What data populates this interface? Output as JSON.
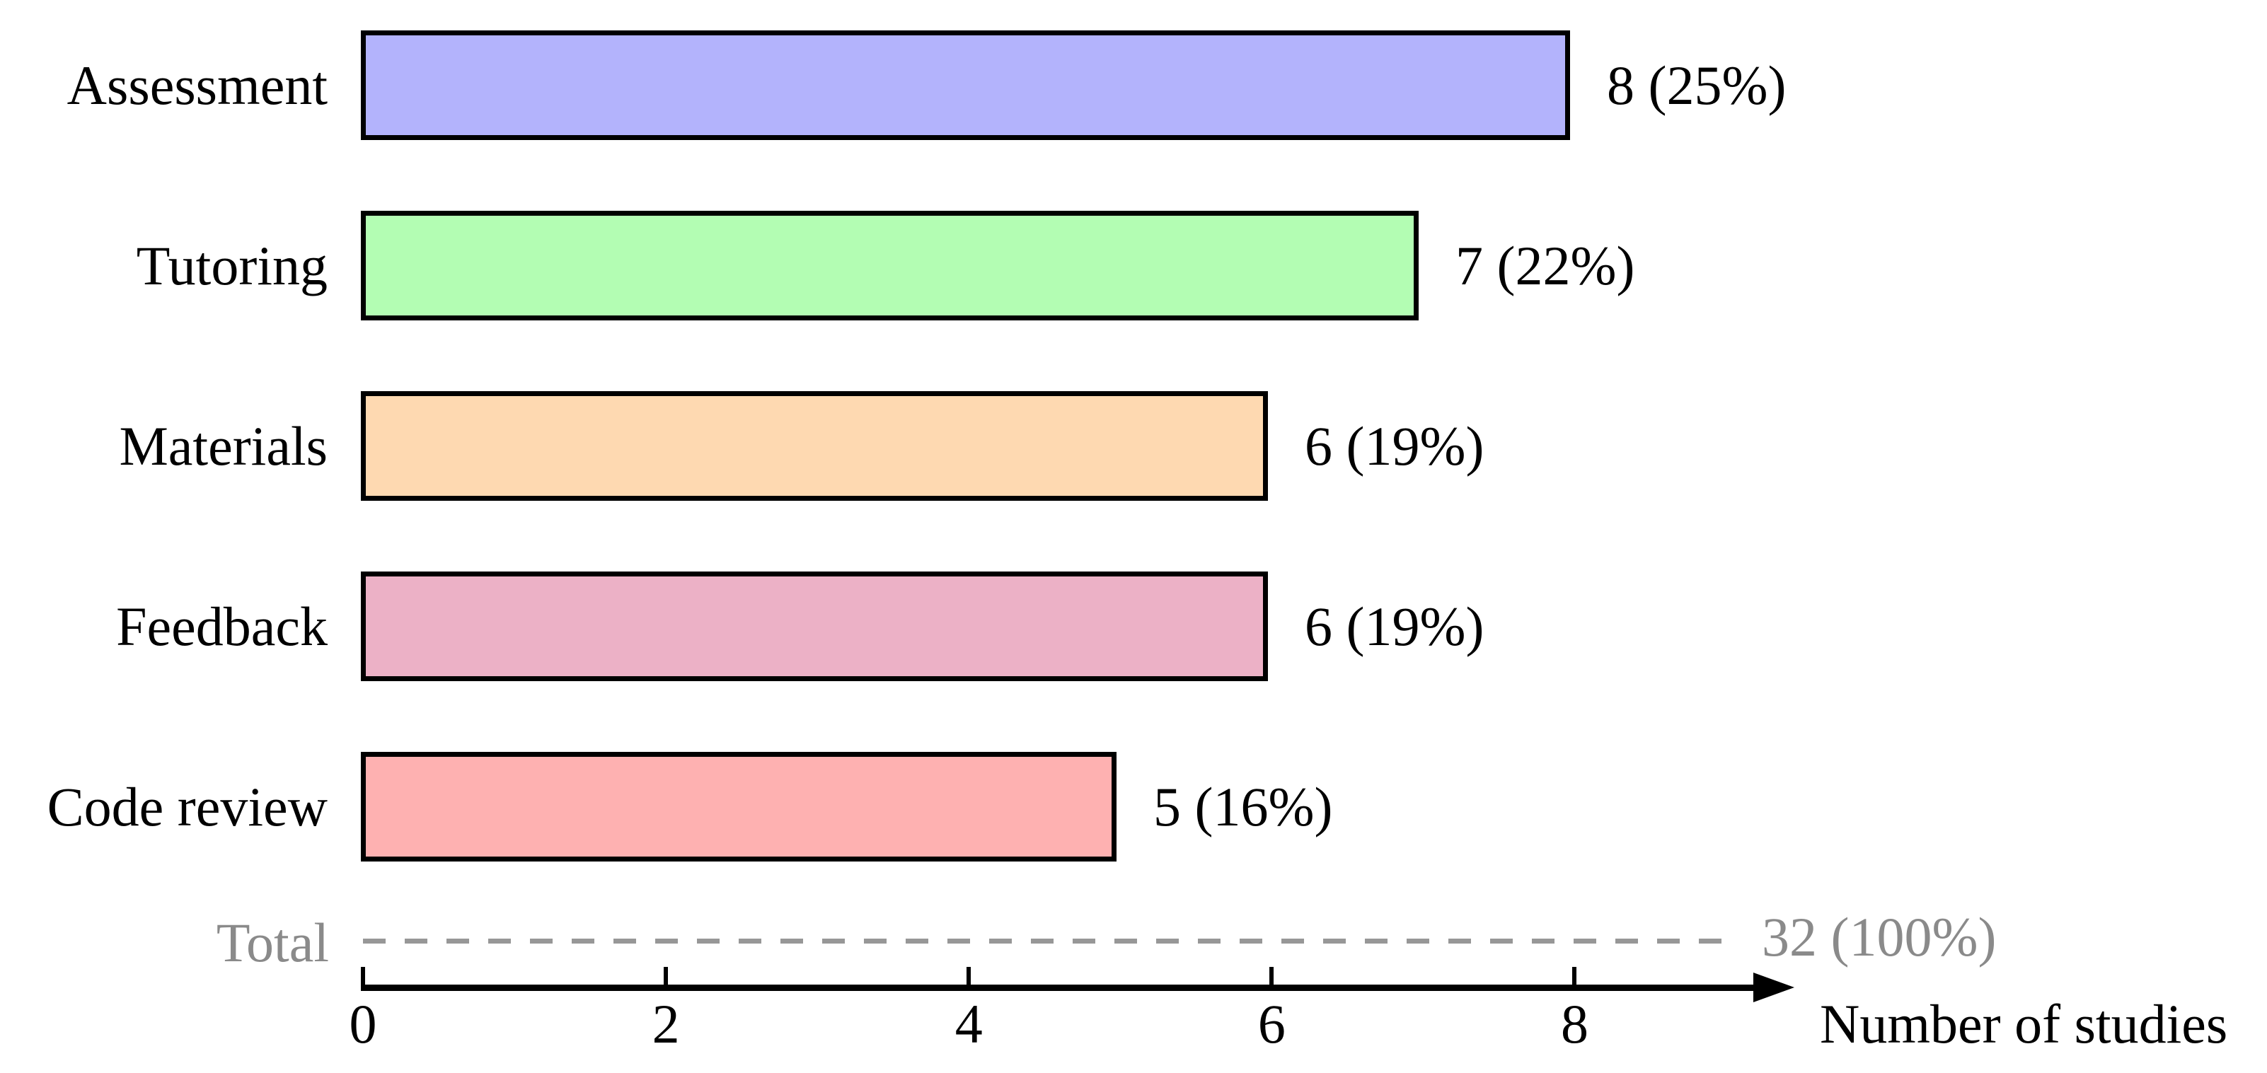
{
  "chart_data": {
    "type": "bar",
    "orientation": "horizontal",
    "title": "",
    "xlabel": "Number of studies",
    "ylabel": "",
    "categories": [
      "Assessment",
      "Tutoring",
      "Materials",
      "Feedback",
      "Code review"
    ],
    "values": [
      8,
      7,
      6,
      6,
      5
    ],
    "value_labels": [
      "8 (25%)",
      "7 (22%)",
      "6 (19%)",
      "6 (19%)",
      "5 (16%)"
    ],
    "bar_colors": [
      "#b3b3fc",
      "#b3fdb3",
      "#fed9b1",
      "#ecb1c6",
      "#feb1b1"
    ],
    "bar_border_color": "#000000",
    "x_ticks": [
      0,
      2,
      4,
      6,
      8
    ],
    "xlim": [
      0,
      8
    ],
    "grid": "off",
    "legend": "none",
    "total_row": {
      "label": "Total",
      "value": 32,
      "value_label": "32 (100%)",
      "color": "#8a8a8a",
      "dash_color": "#979797"
    }
  }
}
